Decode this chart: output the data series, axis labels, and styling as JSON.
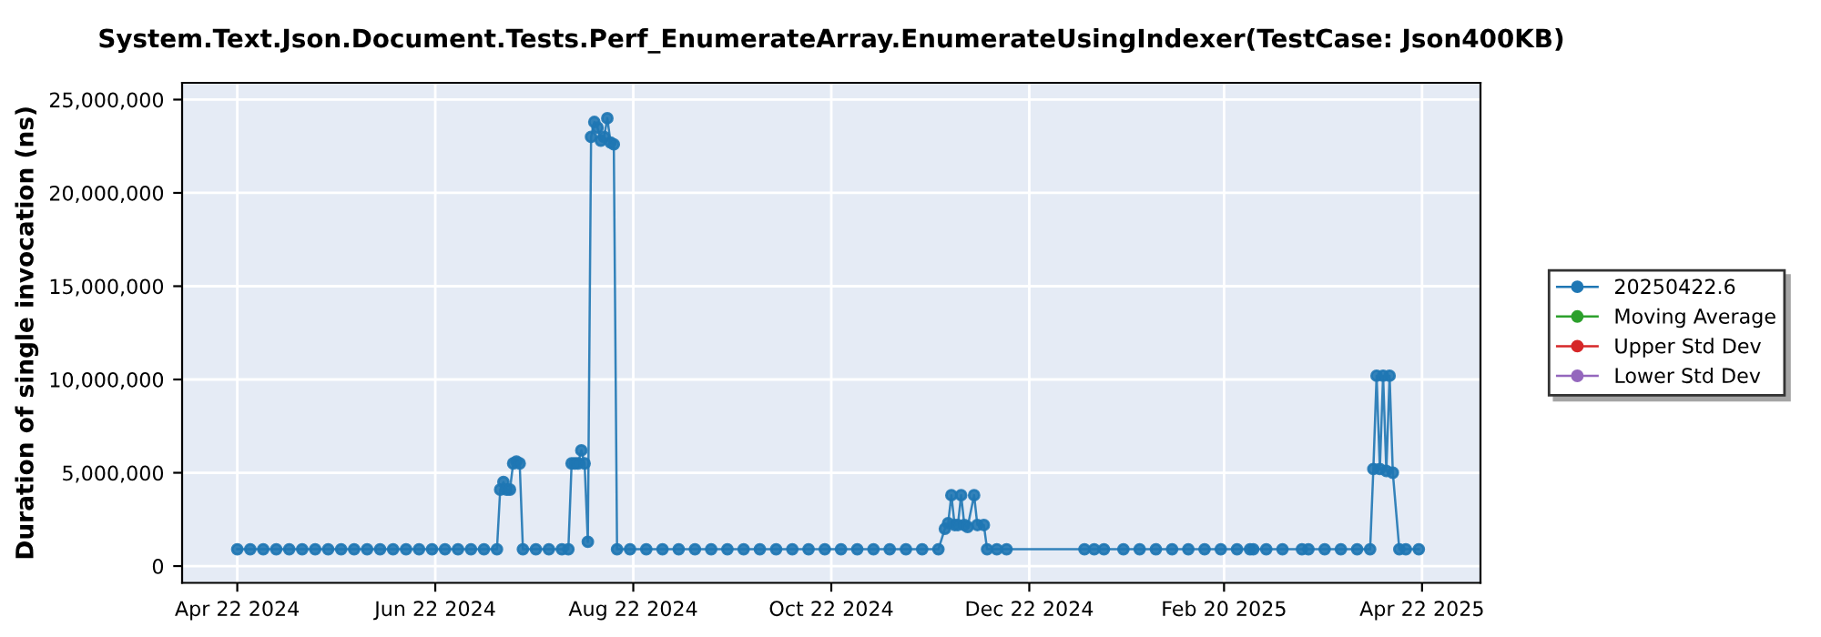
{
  "chart_data": {
    "type": "line",
    "title": "System.Text.Json.Document.Tests.Perf_EnumerateArray.EnumerateUsingIndexer(TestCase: Json400KB)",
    "ylabel": "Duration of single invocation (ns)",
    "x": [
      "2024-04-22",
      "2024-04-26",
      "2024-04-30",
      "2024-05-04",
      "2024-05-08",
      "2024-05-12",
      "2024-05-16",
      "2024-05-20",
      "2024-05-24",
      "2024-05-28",
      "2024-06-01",
      "2024-06-05",
      "2024-06-09",
      "2024-06-13",
      "2024-06-17",
      "2024-06-21",
      "2024-06-25",
      "2024-06-29",
      "2024-07-03",
      "2024-07-07",
      "2024-07-11",
      "2024-07-12",
      "2024-07-13",
      "2024-07-14",
      "2024-07-15",
      "2024-07-16",
      "2024-07-17",
      "2024-07-18",
      "2024-07-19",
      "2024-07-23",
      "2024-07-27",
      "2024-07-31",
      "2024-08-02",
      "2024-08-03",
      "2024-08-04",
      "2024-08-05",
      "2024-08-06",
      "2024-08-07",
      "2024-08-08",
      "2024-08-09",
      "2024-08-10",
      "2024-08-11",
      "2024-08-12",
      "2024-08-13",
      "2024-08-14",
      "2024-08-15",
      "2024-08-16",
      "2024-08-17",
      "2024-08-21",
      "2024-08-26",
      "2024-08-31",
      "2024-09-05",
      "2024-09-10",
      "2024-09-15",
      "2024-09-20",
      "2024-09-25",
      "2024-09-30",
      "2024-10-05",
      "2024-10-10",
      "2024-10-15",
      "2024-10-20",
      "2024-10-25",
      "2024-10-30",
      "2024-11-04",
      "2024-11-09",
      "2024-11-14",
      "2024-11-19",
      "2024-11-24",
      "2024-11-26",
      "2024-11-27",
      "2024-11-28",
      "2024-11-29",
      "2024-11-30",
      "2024-12-01",
      "2024-12-02",
      "2024-12-03",
      "2024-12-05",
      "2024-12-06",
      "2024-12-08",
      "2024-12-09",
      "2024-12-12",
      "2024-12-15",
      "2025-01-08",
      "2025-01-11",
      "2025-01-14",
      "2025-01-20",
      "2025-01-25",
      "2025-01-30",
      "2025-02-04",
      "2025-02-09",
      "2025-02-14",
      "2025-02-19",
      "2025-02-24",
      "2025-02-28",
      "2025-03-01",
      "2025-03-05",
      "2025-03-10",
      "2025-03-16",
      "2025-03-18",
      "2025-03-23",
      "2025-03-28",
      "2025-04-02",
      "2025-04-06",
      "2025-04-07",
      "2025-04-08",
      "2025-04-09",
      "2025-04-10",
      "2025-04-11",
      "2025-04-12",
      "2025-04-13",
      "2025-04-15",
      "2025-04-17",
      "2025-04-21"
    ],
    "series": [
      {
        "name": "20250422.6",
        "color": "#1f77b4",
        "values": [
          900000,
          900000,
          900000,
          900000,
          900000,
          900000,
          900000,
          900000,
          900000,
          900000,
          900000,
          900000,
          900000,
          900000,
          900000,
          900000,
          900000,
          900000,
          900000,
          900000,
          900000,
          4100000,
          4500000,
          4100000,
          4100000,
          5500000,
          5600000,
          5500000,
          900000,
          900000,
          900000,
          900000,
          900000,
          5500000,
          5500000,
          5500000,
          6200000,
          5500000,
          1300000,
          23000000,
          23800000,
          23500000,
          22800000,
          23000000,
          24000000,
          22700000,
          22600000,
          900000,
          900000,
          900000,
          900000,
          900000,
          900000,
          900000,
          900000,
          900000,
          900000,
          900000,
          900000,
          900000,
          900000,
          900000,
          900000,
          900000,
          900000,
          900000,
          900000,
          900000,
          2000000,
          2300000,
          3800000,
          2200000,
          2200000,
          3800000,
          2200000,
          2100000,
          3800000,
          2200000,
          2200000,
          900000,
          900000,
          900000,
          900000,
          900000,
          900000,
          900000,
          900000,
          900000,
          900000,
          900000,
          900000,
          900000,
          900000,
          900000,
          900000,
          900000,
          900000,
          900000,
          900000,
          900000,
          900000,
          900000,
          900000,
          5200000,
          10200000,
          5200000,
          10200000,
          5100000,
          10200000,
          5000000,
          900000,
          900000,
          900000
        ]
      },
      {
        "name": "Moving Average",
        "color": "#2ca02c",
        "values": [
          null,
          null,
          null,
          null,
          null,
          null,
          null,
          null,
          null,
          null,
          null,
          null,
          null,
          null,
          null,
          null,
          null,
          null,
          null,
          null,
          null,
          null,
          null,
          null,
          null,
          null,
          null,
          null,
          null,
          null,
          null,
          null,
          null,
          null,
          null,
          null,
          null,
          null,
          null,
          null,
          null,
          null,
          null,
          null,
          null,
          null,
          null,
          null,
          null,
          null,
          null,
          null,
          null,
          null,
          null,
          null,
          null,
          null,
          null,
          null,
          null,
          null,
          null,
          null,
          null,
          null,
          null,
          null,
          null,
          null,
          null,
          null,
          null,
          null,
          null,
          null,
          null,
          null,
          null,
          null,
          null,
          null,
          null,
          null,
          null,
          null,
          null,
          null,
          null,
          null,
          null,
          null,
          null,
          null,
          null,
          null,
          null,
          null,
          null,
          null,
          null,
          null,
          null,
          null,
          null,
          null,
          null,
          null,
          null,
          null,
          null,
          null,
          null
        ]
      },
      {
        "name": "Upper Std Dev",
        "color": "#d62728",
        "values": [
          null,
          null,
          null,
          null,
          null,
          null,
          null,
          null,
          null,
          null,
          null,
          null,
          null,
          null,
          null,
          null,
          null,
          null,
          null,
          null,
          null,
          null,
          null,
          null,
          null,
          null,
          null,
          null,
          null,
          null,
          null,
          null,
          null,
          null,
          null,
          null,
          null,
          null,
          null,
          null,
          null,
          null,
          null,
          null,
          null,
          null,
          null,
          null,
          null,
          null,
          null,
          null,
          null,
          null,
          null,
          null,
          null,
          null,
          null,
          null,
          null,
          null,
          null,
          null,
          null,
          null,
          null,
          null,
          null,
          null,
          null,
          null,
          null,
          null,
          null,
          null,
          null,
          null,
          null,
          null,
          null,
          null,
          null,
          null,
          null,
          null,
          null,
          null,
          null,
          null,
          null,
          null,
          null,
          null,
          null,
          null,
          null,
          null,
          null,
          null,
          null,
          null,
          null,
          null,
          null,
          null,
          null,
          null,
          null,
          null,
          null,
          null,
          null
        ]
      },
      {
        "name": "Lower Std Dev",
        "color": "#9467bd",
        "values": [
          null,
          null,
          null,
          null,
          null,
          null,
          null,
          null,
          null,
          null,
          null,
          null,
          null,
          null,
          null,
          null,
          null,
          null,
          null,
          null,
          null,
          null,
          null,
          null,
          null,
          null,
          null,
          null,
          null,
          null,
          null,
          null,
          null,
          null,
          null,
          null,
          null,
          null,
          null,
          null,
          null,
          null,
          null,
          null,
          null,
          null,
          null,
          null,
          null,
          null,
          null,
          null,
          null,
          null,
          null,
          null,
          null,
          null,
          null,
          null,
          null,
          null,
          null,
          null,
          null,
          null,
          null,
          null,
          null,
          null,
          null,
          null,
          null,
          null,
          null,
          null,
          null,
          null,
          null,
          null,
          null,
          null,
          null,
          null,
          null,
          null,
          null,
          null,
          null,
          null,
          null,
          null,
          null,
          null,
          null,
          null,
          null,
          null,
          null,
          null,
          null,
          null,
          null,
          null,
          null,
          null,
          null,
          null,
          null,
          null,
          null,
          null,
          null
        ]
      }
    ],
    "xlim": [
      "2024-04-05",
      "2025-05-10"
    ],
    "xticks": [
      {
        "value": "2024-04-22",
        "label": "Apr 22 2024"
      },
      {
        "value": "2024-06-22",
        "label": "Jun 22 2024"
      },
      {
        "value": "2024-08-22",
        "label": "Aug 22 2024"
      },
      {
        "value": "2024-10-22",
        "label": "Oct 22 2024"
      },
      {
        "value": "2024-12-22",
        "label": "Dec 22 2024"
      },
      {
        "value": "2025-02-20",
        "label": "Feb 20 2025"
      },
      {
        "value": "2025-04-22",
        "label": "Apr 22 2025"
      }
    ],
    "ylim": [
      -900000,
      25900000
    ],
    "yticks": [
      0,
      {
        "value": 5000000,
        "label": "5,000,000"
      },
      {
        "value": 10000000,
        "label": "10,000,000"
      },
      {
        "value": 15000000,
        "label": "15,000,000"
      },
      {
        "value": 20000000,
        "label": "20,000,000"
      },
      {
        "value": 25000000,
        "label": "25,000,000"
      }
    ],
    "grid": true,
    "legend": "right",
    "marker": "circle",
    "line_style": "solid"
  }
}
